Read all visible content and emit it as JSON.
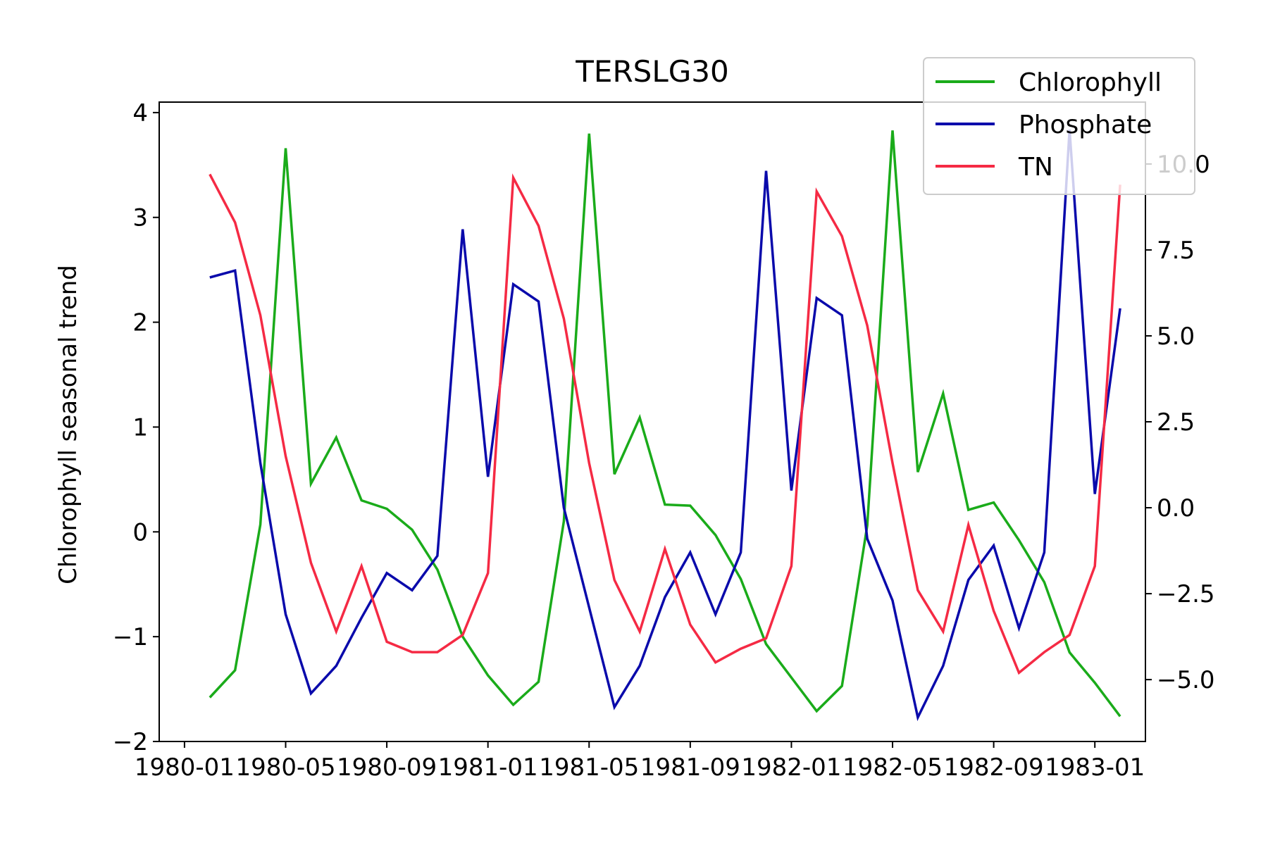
{
  "chart_data": {
    "type": "line",
    "title": "TERSLG30",
    "xlabel": "",
    "ylabel": "Chlorophyll seasonal trend",
    "y2label": "",
    "x_ticks": [
      "1980-01",
      "1980-05",
      "1980-09",
      "1981-01",
      "1981-05",
      "1981-09",
      "1982-01",
      "1982-05",
      "1982-09",
      "1983-01"
    ],
    "y_ticks": [
      "−2",
      "−1",
      "0",
      "1",
      "2",
      "3",
      "4"
    ],
    "y2_ticks": [
      "−5.0",
      "−2.5",
      "0.0",
      "2.5",
      "5.0",
      "7.5",
      "10.0"
    ],
    "ylim": [
      -2.0,
      4.1
    ],
    "y2lim": [
      -6.8,
      11.8
    ],
    "xlim": [
      "1979-12-01",
      "1983-03-01"
    ],
    "grid": false,
    "legend_position": "top-right",
    "x": [
      "1980-02-01",
      "1980-03-01",
      "1980-04-01",
      "1980-05-01",
      "1980-06-01",
      "1980-07-01",
      "1980-08-01",
      "1980-09-01",
      "1980-10-01",
      "1980-11-01",
      "1980-12-01",
      "1981-01-01",
      "1981-02-01",
      "1981-03-01",
      "1981-04-01",
      "1981-05-01",
      "1981-06-01",
      "1981-07-01",
      "1981-08-01",
      "1981-09-01",
      "1981-10-01",
      "1981-11-01",
      "1981-12-01",
      "1982-01-01",
      "1982-02-01",
      "1982-03-01",
      "1982-04-01",
      "1982-05-01",
      "1982-06-01",
      "1982-07-01",
      "1982-08-01",
      "1982-09-01",
      "1982-10-01",
      "1982-11-01",
      "1982-12-01",
      "1983-01-01",
      "1983-02-01"
    ],
    "series": [
      {
        "name": "Chlorophyll",
        "color": "#1aab1a",
        "axis": "left",
        "values": [
          -1.58,
          -1.32,
          0.07,
          3.66,
          0.46,
          0.9,
          0.3,
          0.22,
          0.02,
          -0.36,
          -1.0,
          -1.37,
          -1.65,
          -1.43,
          0.1,
          3.8,
          0.55,
          1.09,
          0.26,
          0.25,
          -0.03,
          -0.45,
          -1.07,
          -1.39,
          -1.71,
          -1.47,
          0.06,
          3.83,
          0.57,
          1.32,
          0.21,
          0.28,
          -0.08,
          -0.48,
          -1.15,
          -1.44,
          -1.76
        ]
      },
      {
        "name": "Phosphate",
        "color": "#0a0aab",
        "axis": "right",
        "values": [
          6.7,
          6.9,
          1.3,
          -3.1,
          -5.4,
          -4.6,
          -3.2,
          -1.9,
          -2.4,
          -1.4,
          8.1,
          0.9,
          6.5,
          6.0,
          0.0,
          -2.9,
          -5.8,
          -4.6,
          -2.6,
          -1.3,
          -3.1,
          -1.3,
          9.8,
          0.5,
          6.1,
          5.6,
          -0.9,
          -2.7,
          -6.1,
          -4.6,
          -2.1,
          -1.1,
          -3.5,
          -1.3,
          11.0,
          0.4,
          5.8
        ]
      },
      {
        "name": "TN",
        "color": "#f52a44",
        "axis": "right",
        "values": [
          9.7,
          8.3,
          5.6,
          1.5,
          -1.6,
          -3.6,
          -1.7,
          -3.9,
          -4.2,
          -4.2,
          -3.7,
          -1.9,
          9.6,
          8.2,
          5.5,
          1.3,
          -2.1,
          -3.6,
          -1.2,
          -3.4,
          -4.5,
          -4.1,
          -3.8,
          -1.7,
          9.2,
          7.9,
          5.3,
          1.3,
          -2.4,
          -3.6,
          -0.5,
          -3.0,
          -4.8,
          -4.2,
          -3.7,
          -1.7,
          9.4
        ]
      }
    ]
  }
}
